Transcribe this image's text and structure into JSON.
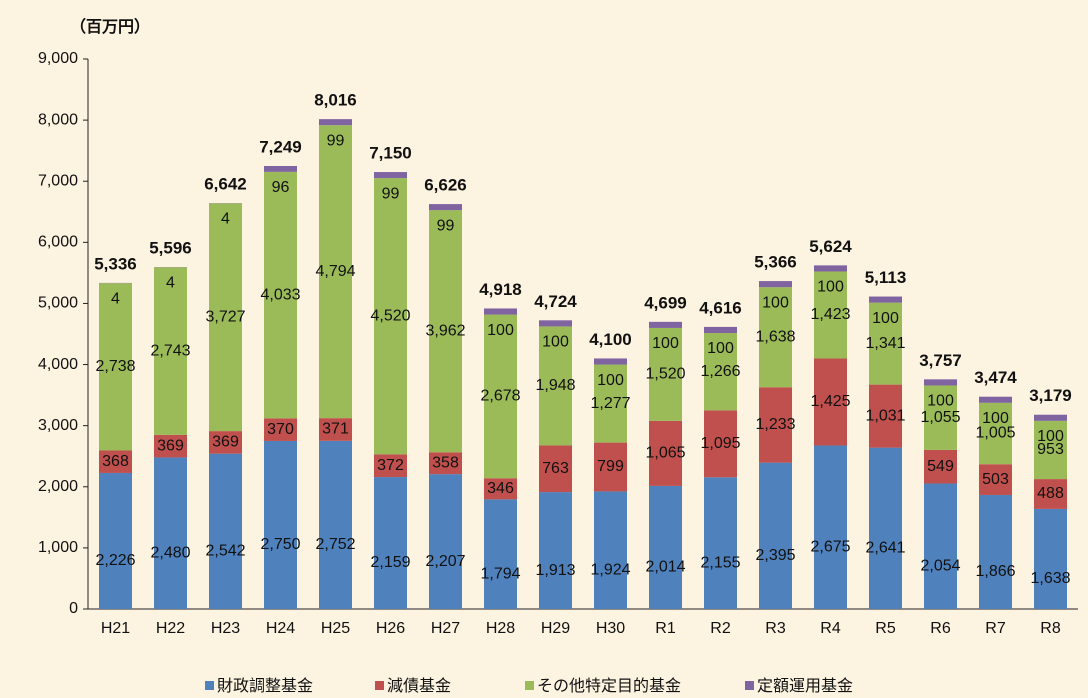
{
  "chart_data": {
    "type": "stacked_bar",
    "y_unit": "（百万円）",
    "categories": [
      "H21",
      "H22",
      "H23",
      "H24",
      "H25",
      "H26",
      "H27",
      "H28",
      "H29",
      "H30",
      "R1",
      "R2",
      "R3",
      "R4",
      "R5",
      "R6",
      "R7",
      "R8"
    ],
    "series": [
      {
        "name": "財政調整基金",
        "color": "#4f81bd",
        "values": [
          2226,
          2480,
          2542,
          2750,
          2752,
          2159,
          2207,
          1794,
          1913,
          1924,
          2014,
          2155,
          2395,
          2675,
          2641,
          2054,
          1866,
          1638
        ],
        "value_labels": [
          "2,226",
          "2,480",
          "2,542",
          "2,750",
          "2,752",
          "2,159",
          "2,207",
          "1,794",
          "1,913",
          "1,924",
          "2,014",
          "2,155",
          "2,395",
          "2,675",
          "2,641",
          "2,054",
          "1,866",
          "1,638"
        ]
      },
      {
        "name": "減債基金",
        "color": "#c0504d",
        "values": [
          368,
          369,
          369,
          370,
          371,
          372,
          358,
          346,
          763,
          799,
          1065,
          1095,
          1233,
          1425,
          1031,
          549,
          503,
          488
        ],
        "value_labels": [
          "368",
          "369",
          "369",
          "370",
          "371",
          "372",
          "358",
          "346",
          "763",
          "799",
          "1,065",
          "1,095",
          "1,233",
          "1,425",
          "1,031",
          "549",
          "503",
          "488"
        ]
      },
      {
        "name": "その他特定目的基金",
        "color": "#9bbb59",
        "values": [
          2738,
          2743,
          3727,
          4033,
          4794,
          4520,
          3962,
          2678,
          1948,
          1277,
          1520,
          1266,
          1638,
          1423,
          1341,
          1055,
          1005,
          953
        ],
        "value_labels": [
          "2,738",
          "2,743",
          "3,727",
          "4,033",
          "4,794",
          "4,520",
          "3,962",
          "2,678",
          "1,948",
          "1,277",
          "1,520",
          "1,266",
          "1,638",
          "1,423",
          "1,341",
          "1,055",
          "1,005",
          "953"
        ]
      },
      {
        "name": "定額運用基金",
        "color": "#8064a2",
        "values": [
          4,
          4,
          4,
          96,
          99,
          99,
          99,
          100,
          100,
          100,
          100,
          100,
          100,
          100,
          100,
          100,
          100,
          100
        ]
      }
    ],
    "totals": [
      5336,
      5596,
      6642,
      7249,
      8016,
      7150,
      6626,
      4918,
      4724,
      4100,
      4699,
      4616,
      5366,
      5624,
      5113,
      3757,
      3474,
      3179
    ],
    "total_labels": [
      "5,336",
      "5,596",
      "6,642",
      "7,249",
      "8,016",
      "7,150",
      "6,626",
      "4,918",
      "4,724",
      "4,100",
      "4,699",
      "4,616",
      "5,366",
      "5,624",
      "5,113",
      "3,757",
      "3,474",
      "3,179"
    ],
    "ylim": [
      0,
      9000
    ],
    "yticks": [
      0,
      {
        "value": 1000,
        "label": "1,000"
      },
      {
        "value": 2000,
        "label": "2,000"
      },
      {
        "value": 3000,
        "label": "3,000"
      },
      {
        "value": 4000,
        "label": "4,000"
      },
      {
        "value": 5000,
        "label": "5,000"
      },
      {
        "value": 6000,
        "label": "6,000"
      },
      {
        "value": 7000,
        "label": "7,000"
      },
      {
        "value": 8000,
        "label": "8,000"
      },
      {
        "value": 9000,
        "label": "9,000"
      }
    ]
  }
}
